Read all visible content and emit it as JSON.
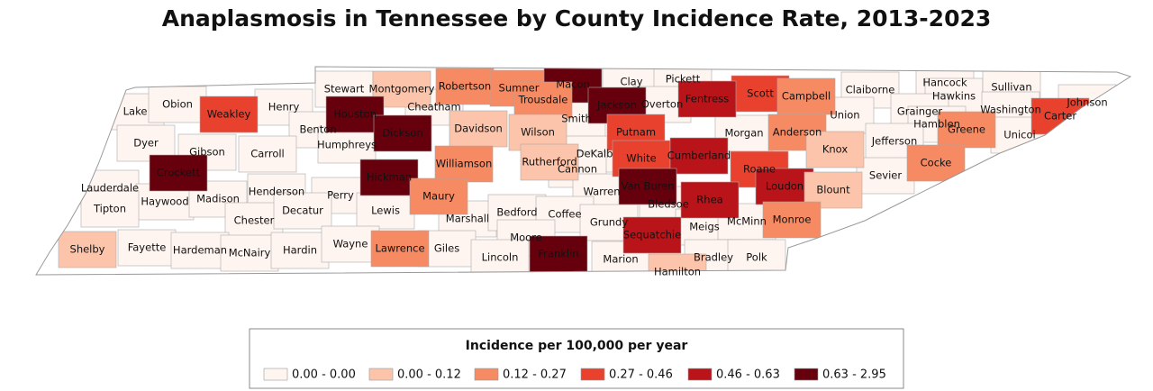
{
  "title": "Anaplasmosis in Tennessee by County Incidence Rate, 2013-2023",
  "legend": {
    "title": "Incidence per 100,000 per year",
    "items": [
      {
        "label": "0.00 - 0.00",
        "color": "#fff5f0"
      },
      {
        "label": "0.00 - 0.12",
        "color": "#fcc5ab"
      },
      {
        "label": "0.12 - 0.27",
        "color": "#f58a63"
      },
      {
        "label": "0.27 - 0.46",
        "color": "#e8412e"
      },
      {
        "label": "0.46 - 0.63",
        "color": "#b81419"
      },
      {
        "label": "0.63 - 2.95",
        "color": "#67000d"
      }
    ]
  },
  "counties": [
    {
      "name": "Lake",
      "color": "#fff5f0"
    },
    {
      "name": "Obion",
      "color": "#fff5f0"
    },
    {
      "name": "Weakley",
      "color": "#e8412e"
    },
    {
      "name": "Henry",
      "color": "#fff5f0"
    },
    {
      "name": "Stewart",
      "color": "#fff5f0"
    },
    {
      "name": "Montgomery",
      "color": "#fcc5ab"
    },
    {
      "name": "Robertson",
      "color": "#f58a63"
    },
    {
      "name": "Sumner",
      "color": "#f58a63"
    },
    {
      "name": "Macon",
      "color": "#67000d"
    },
    {
      "name": "Clay",
      "color": "#fff5f0"
    },
    {
      "name": "Pickett",
      "color": "#fff5f0"
    },
    {
      "name": "Scott",
      "color": "#e8412e"
    },
    {
      "name": "Campbell",
      "color": "#f58a63"
    },
    {
      "name": "Claiborne",
      "color": "#fff5f0"
    },
    {
      "name": "Hancock",
      "color": "#fff5f0"
    },
    {
      "name": "Hawkins",
      "color": "#fff5f0"
    },
    {
      "name": "Sullivan",
      "color": "#fff5f0"
    },
    {
      "name": "Johnson",
      "color": "#fff5f0"
    },
    {
      "name": "Carter",
      "color": "#e8412e"
    },
    {
      "name": "Washington",
      "color": "#fff5f0"
    },
    {
      "name": "Unicoi",
      "color": "#fff5f0"
    },
    {
      "name": "Grainger",
      "color": "#fff5f0"
    },
    {
      "name": "Hamblen",
      "color": "#fff5f0"
    },
    {
      "name": "Union",
      "color": "#fff5f0"
    },
    {
      "name": "Fentress",
      "color": "#b81419"
    },
    {
      "name": "Overton",
      "color": "#fff5f0"
    },
    {
      "name": "Jackson",
      "color": "#67000d"
    },
    {
      "name": "Trousdale",
      "color": "#f58a63"
    },
    {
      "name": "Smith",
      "color": "#fff5f0"
    },
    {
      "name": "Houston",
      "color": "#67000d"
    },
    {
      "name": "Cheatham",
      "color": "#fff5f0"
    },
    {
      "name": "Dickson",
      "color": "#67000d"
    },
    {
      "name": "Benton",
      "color": "#fff5f0"
    },
    {
      "name": "Humphreys",
      "color": "#fff5f0"
    },
    {
      "name": "Davidson",
      "color": "#fcc5ab"
    },
    {
      "name": "Wilson",
      "color": "#fcc5ab"
    },
    {
      "name": "Putnam",
      "color": "#e8412e"
    },
    {
      "name": "Morgan",
      "color": "#fff5f0"
    },
    {
      "name": "Anderson",
      "color": "#f58a63"
    },
    {
      "name": "Knox",
      "color": "#fcc5ab"
    },
    {
      "name": "Jefferson",
      "color": "#fff5f0"
    },
    {
      "name": "Greene",
      "color": "#f58a63"
    },
    {
      "name": "Cocke",
      "color": "#f58a63"
    },
    {
      "name": "Dyer",
      "color": "#fff5f0"
    },
    {
      "name": "Gibson",
      "color": "#fff5f0"
    },
    {
      "name": "Carroll",
      "color": "#fff5f0"
    },
    {
      "name": "Crockett",
      "color": "#67000d"
    },
    {
      "name": "Hickman",
      "color": "#67000d"
    },
    {
      "name": "Williamson",
      "color": "#f58a63"
    },
    {
      "name": "Rutherford",
      "color": "#fcc5ab"
    },
    {
      "name": "DeKalb",
      "color": "#fff5f0"
    },
    {
      "name": "Cannon",
      "color": "#fff5f0"
    },
    {
      "name": "White",
      "color": "#e8412e"
    },
    {
      "name": "Cumberland",
      "color": "#b81419"
    },
    {
      "name": "Roane",
      "color": "#e8412e"
    },
    {
      "name": "Loudon",
      "color": "#b81419"
    },
    {
      "name": "Blount",
      "color": "#fcc5ab"
    },
    {
      "name": "Sevier",
      "color": "#fff5f0"
    },
    {
      "name": "Lauderdale",
      "color": "#fff5f0"
    },
    {
      "name": "Haywood",
      "color": "#fff5f0"
    },
    {
      "name": "Madison",
      "color": "#fff5f0"
    },
    {
      "name": "Henderson",
      "color": "#fff5f0"
    },
    {
      "name": "Perry",
      "color": "#fff5f0"
    },
    {
      "name": "Lewis",
      "color": "#fff5f0"
    },
    {
      "name": "Maury",
      "color": "#f58a63"
    },
    {
      "name": "Warren",
      "color": "#fff5f0"
    },
    {
      "name": "Van Buren",
      "color": "#67000d"
    },
    {
      "name": "Rhea",
      "color": "#b81419"
    },
    {
      "name": "Bledsoe",
      "color": "#fff5f0"
    },
    {
      "name": "Tipton",
      "color": "#fff5f0"
    },
    {
      "name": "Chester",
      "color": "#fff5f0"
    },
    {
      "name": "Decatur",
      "color": "#fff5f0"
    },
    {
      "name": "Marshall",
      "color": "#fff5f0"
    },
    {
      "name": "Bedford",
      "color": "#fff5f0"
    },
    {
      "name": "Coffee",
      "color": "#fff5f0"
    },
    {
      "name": "Grundy",
      "color": "#fff5f0"
    },
    {
      "name": "Sequatchie",
      "color": "#b81419"
    },
    {
      "name": "Meigs",
      "color": "#fff5f0"
    },
    {
      "name": "McMinn",
      "color": "#fff5f0"
    },
    {
      "name": "Monroe",
      "color": "#f58a63"
    },
    {
      "name": "Shelby",
      "color": "#fcc5ab"
    },
    {
      "name": "Fayette",
      "color": "#fff5f0"
    },
    {
      "name": "Hardeman",
      "color": "#fff5f0"
    },
    {
      "name": "McNairy",
      "color": "#fff5f0"
    },
    {
      "name": "Hardin",
      "color": "#fff5f0"
    },
    {
      "name": "Wayne",
      "color": "#fff5f0"
    },
    {
      "name": "Lawrence",
      "color": "#f58a63"
    },
    {
      "name": "Giles",
      "color": "#fff5f0"
    },
    {
      "name": "Moore",
      "color": "#fff5f0"
    },
    {
      "name": "Lincoln",
      "color": "#fff5f0"
    },
    {
      "name": "Franklin",
      "color": "#67000d"
    },
    {
      "name": "Marion",
      "color": "#fff5f0"
    },
    {
      "name": "Hamilton",
      "color": "#fcc5ab"
    },
    {
      "name": "Bradley",
      "color": "#fff5f0"
    },
    {
      "name": "Polk",
      "color": "#fff5f0"
    }
  ]
}
